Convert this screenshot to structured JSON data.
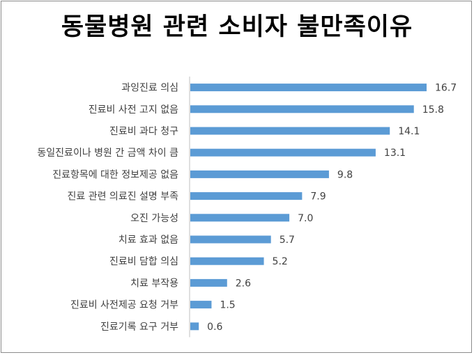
{
  "chart_data": {
    "type": "bar",
    "orientation": "horizontal",
    "title": "동물병원 관련 소비자 불만족이유",
    "xlabel": "",
    "ylabel": "",
    "categories": [
      "과잉진료 의심",
      "진료비 사전 고지 없음",
      "진료비 과다 청구",
      "동일진료이나 병원 간 금액 차이 큼",
      "진료항목에 대한 정보제공 없음",
      "진료 관련 의료진 설명 부족",
      "오진 가능성",
      "치료 효과 없음",
      "진료비 담합 의심",
      "치료 부작용",
      "진료비 사전제공 요청 거부",
      "진료기록 요구 거부"
    ],
    "values": [
      16.7,
      15.8,
      14.1,
      13.1,
      9.8,
      7.9,
      7.0,
      5.7,
      5.2,
      2.6,
      1.5,
      0.6
    ],
    "value_labels": [
      "16.7",
      "15.8",
      "14.1",
      "13.1",
      "9.8",
      "7.9",
      "7.0",
      "5.7",
      "5.2",
      "2.6",
      "1.5",
      "0.6"
    ],
    "xlim": [
      0,
      18
    ],
    "grid": false,
    "bar_color": "#5b9bd5",
    "legend": "none"
  }
}
